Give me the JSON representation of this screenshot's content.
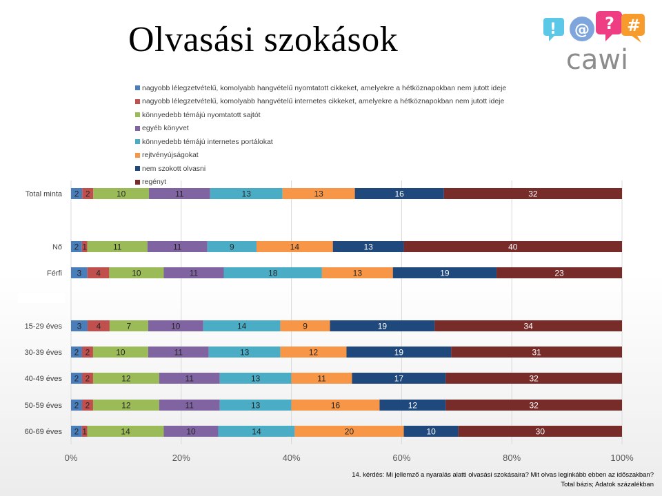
{
  "title": "Olvasási szokások",
  "logo": {
    "text": "cawi",
    "bubbles": [
      "!",
      "@",
      "?",
      "#"
    ]
  },
  "footnote": {
    "question": "14. kérdés: Mi jellemző a nyaralás alatti olvasási szokásaira? Mit olvas leginkább ebben az időszakban?",
    "base": "Total bázis; Adatok százalékban"
  },
  "chart_data": {
    "type": "bar",
    "orientation": "horizontal",
    "stacked": "percent",
    "categories": [
      "Total minta",
      "",
      "Nő",
      "Férfi",
      "",
      "15-29 éves",
      "30-39 éves",
      "40-49 éves",
      "50-59 éves",
      "60-69 éves"
    ],
    "x_ticks": [
      "0%",
      "20%",
      "40%",
      "60%",
      "80%",
      "100%"
    ],
    "xlim": [
      0,
      100
    ],
    "grid": true,
    "legend_position": "top",
    "series": [
      {
        "name": "nagyobb lélegzetvételű, komolyabb hangvételű nyomtatott cikkeket, amelyekre a hétköznapokban nem jutott ideje",
        "color": "#4a7ebb",
        "values": [
          2,
          null,
          2,
          3,
          null,
          3,
          2,
          2,
          2,
          2
        ]
      },
      {
        "name": "nagyobb lélegzetvételű, komolyabb hangvételű internetes cikkeket, amelyekre a hétköznapokban nem jutott ideje",
        "color": "#c0504d",
        "values": [
          2,
          null,
          1,
          4,
          null,
          4,
          2,
          2,
          2,
          1
        ]
      },
      {
        "name": "könnyedebb témájú nyomtatott sajtót",
        "color": "#9bbb59",
        "values": [
          10,
          null,
          11,
          10,
          null,
          7,
          10,
          12,
          12,
          14
        ]
      },
      {
        "name": "egyéb könyvet",
        "color": "#8064a2",
        "values": [
          11,
          null,
          11,
          11,
          null,
          10,
          11,
          11,
          11,
          10
        ]
      },
      {
        "name": "könnyedebb témájú internetes portálokat",
        "color": "#4bacc6",
        "values": [
          13,
          null,
          9,
          18,
          null,
          14,
          13,
          13,
          13,
          14
        ]
      },
      {
        "name": "rejtvényújságokat",
        "color": "#f79646",
        "values": [
          13,
          null,
          14,
          13,
          null,
          9,
          12,
          11,
          16,
          20
        ]
      },
      {
        "name": "nem szokott olvasni",
        "color": "#1f497d",
        "values": [
          16,
          null,
          13,
          19,
          null,
          19,
          19,
          17,
          12,
          10
        ]
      },
      {
        "name": "regényt",
        "color": "#772c2a",
        "values": [
          32,
          null,
          40,
          23,
          null,
          34,
          31,
          32,
          32,
          30
        ]
      }
    ]
  }
}
